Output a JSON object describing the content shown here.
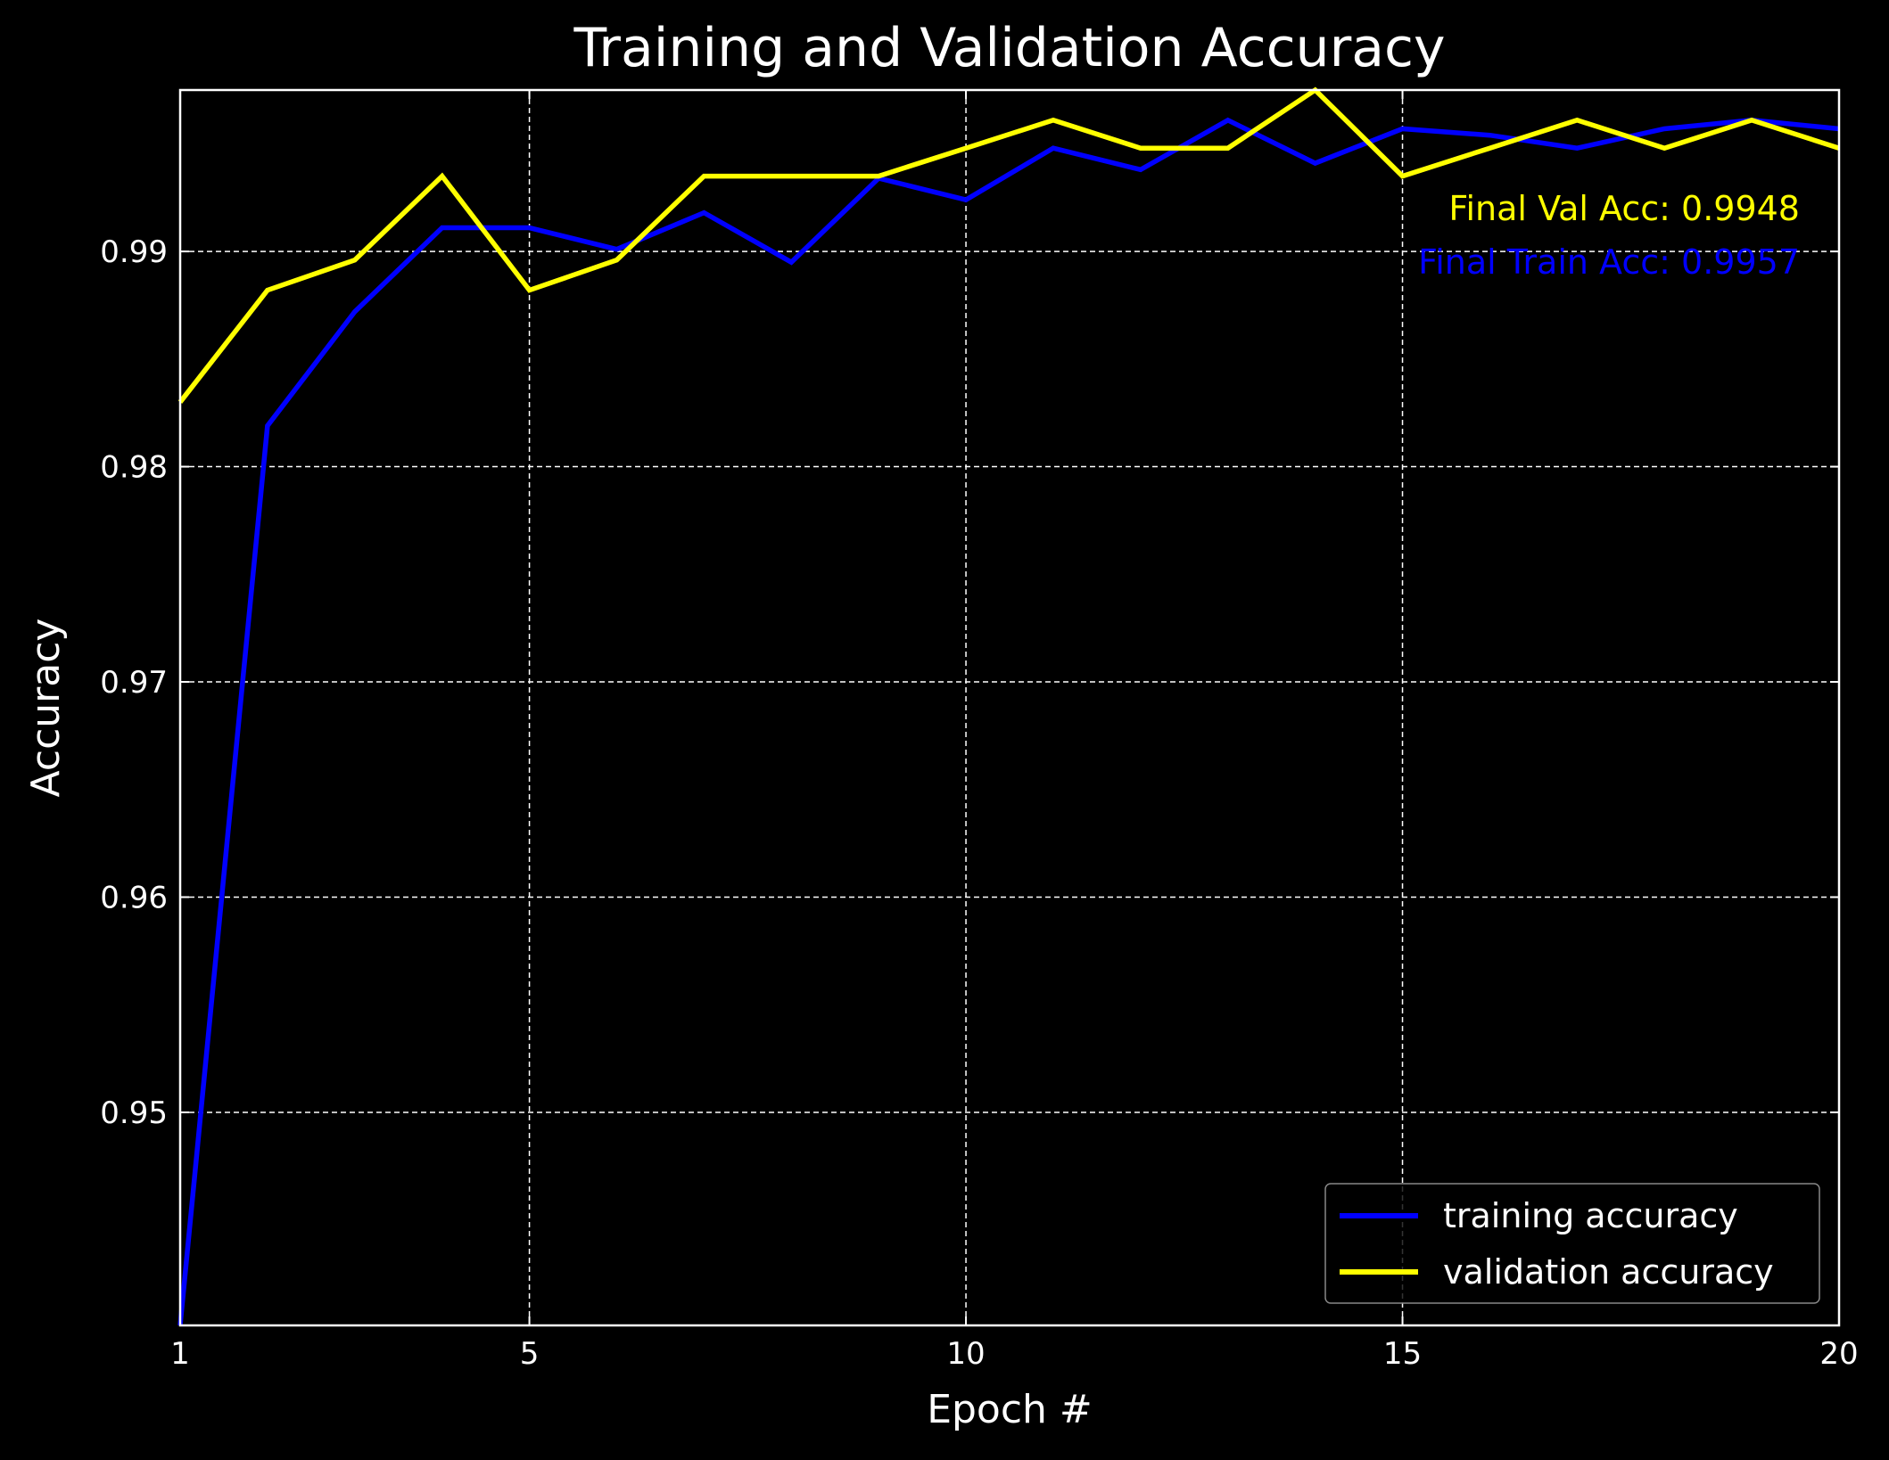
{
  "chart_data": {
    "type": "line",
    "title": "Training and Validation Accuracy",
    "xlabel": "Epoch #",
    "ylabel": "Accuracy",
    "xlim": [
      1,
      20
    ],
    "ylim": [
      0.9401,
      0.9975
    ],
    "xticks": [
      1,
      5,
      10,
      15,
      20
    ],
    "yticks": [
      0.95,
      0.96,
      0.97,
      0.98,
      0.99
    ],
    "ytick_labels": [
      "0.95",
      "0.96",
      "0.97",
      "0.98",
      "0.99"
    ],
    "grid": true,
    "legend_position": "lower-right",
    "x": [
      1,
      2,
      3,
      4,
      5,
      6,
      7,
      8,
      9,
      10,
      11,
      12,
      13,
      14,
      15,
      16,
      17,
      18,
      19,
      20
    ],
    "series": [
      {
        "name": "training accuracy",
        "color": "#0000ff",
        "values": [
          0.9401,
          0.9819,
          0.9872,
          0.9911,
          0.9911,
          0.9901,
          0.9918,
          0.9895,
          0.9934,
          0.9924,
          0.9948,
          0.9938,
          0.9961,
          0.9941,
          0.9957,
          0.9954,
          0.9948,
          0.9957,
          0.9961,
          0.9957
        ]
      },
      {
        "name": "validation accuracy",
        "color": "#ffff00",
        "values": [
          0.983,
          0.9882,
          0.9896,
          0.9935,
          0.9882,
          0.9896,
          0.9935,
          0.9935,
          0.9935,
          0.9948,
          0.9961,
          0.9948,
          0.9948,
          0.9975,
          0.9935,
          0.9948,
          0.9961,
          0.9948,
          0.9961,
          0.9948
        ]
      }
    ],
    "annotations": [
      {
        "text": "Final Val Acc: 0.9948",
        "color": "#ffff00"
      },
      {
        "text": "Final Train Acc: 0.9957",
        "color": "#0000ff"
      }
    ]
  }
}
